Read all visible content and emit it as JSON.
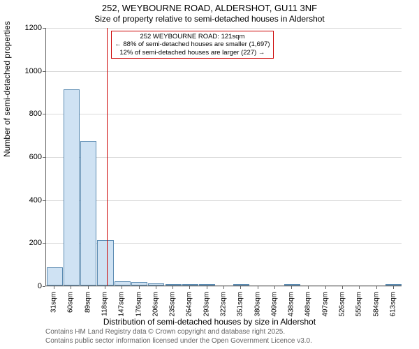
{
  "title_line1": "252, WEYBOURNE ROAD, ALDERSHOT, GU11 3NF",
  "title_line2": "Size of property relative to semi-detached houses in Aldershot",
  "ylabel": "Number of semi-detached properties",
  "xlabel": "Distribution of semi-detached houses by size in Aldershot",
  "attribution1": "Contains HM Land Registry data © Crown copyright and database right 2025.",
  "attribution2": "Contains public sector information licensed under the Open Government Licence v3.0.",
  "chart": {
    "type": "histogram",
    "ylim": [
      0,
      1200
    ],
    "yticks": [
      0,
      200,
      400,
      600,
      800,
      1000,
      1200
    ],
    "xticks_labels": [
      "31sqm",
      "60sqm",
      "89sqm",
      "118sqm",
      "147sqm",
      "176sqm",
      "206sqm",
      "235sqm",
      "264sqm",
      "293sqm",
      "322sqm",
      "351sqm",
      "380sqm",
      "409sqm",
      "438sqm",
      "468sqm",
      "497sqm",
      "526sqm",
      "555sqm",
      "584sqm",
      "613sqm"
    ],
    "bar_values": [
      85,
      910,
      670,
      210,
      20,
      15,
      10,
      5,
      8,
      8,
      0,
      3,
      0,
      0,
      3,
      0,
      0,
      0,
      0,
      0,
      3
    ],
    "bar_fill": "#cfe2f3",
    "bar_stroke": "#5b8bb2",
    "grid_color": "#d9d9d9",
    "background": "#ffffff",
    "reference_line": {
      "value_sqm": 121,
      "color": "#cc0000"
    },
    "annotation": {
      "border_color": "#cc0000",
      "lines": [
        "252 WEYBOURNE ROAD: 121sqm",
        "← 88% of semi-detached houses are smaller (1,697)",
        "12% of semi-detached houses are larger (227) →"
      ]
    }
  }
}
